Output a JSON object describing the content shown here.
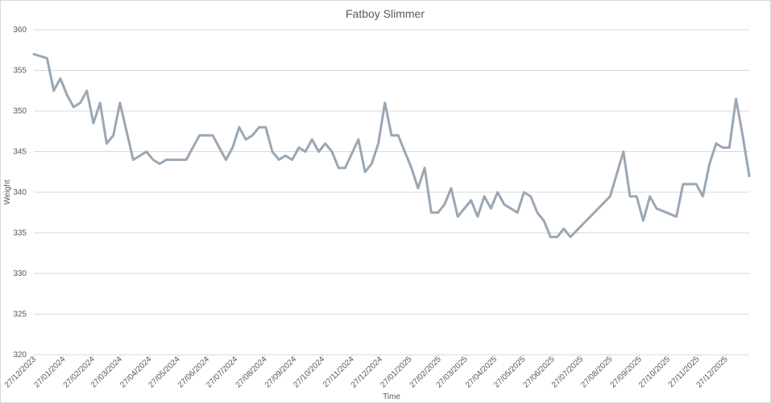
{
  "chart_data": {
    "type": "line",
    "title": "Fatboy Slimmer",
    "x_label": "Time",
    "y_label": "Weight",
    "color": "#9aa7b4",
    "grid": true,
    "x": [
      "2023-12-27",
      "2024-01-10",
      "2024-01-17",
      "2024-01-24",
      "2024-01-31",
      "2024-02-07",
      "2024-02-14",
      "2024-02-21",
      "2024-02-28",
      "2024-03-06",
      "2024-03-13",
      "2024-03-20",
      "2024-03-27",
      "2024-04-10",
      "2024-04-24",
      "2024-05-01",
      "2024-05-08",
      "2024-05-15",
      "2024-06-05",
      "2024-06-19",
      "2024-07-03",
      "2024-07-17",
      "2024-07-24",
      "2024-07-31",
      "2024-08-07",
      "2024-08-14",
      "2024-08-21",
      "2024-08-28",
      "2024-09-04",
      "2024-09-11",
      "2024-09-18",
      "2024-09-25",
      "2024-10-02",
      "2024-10-09",
      "2024-10-16",
      "2024-10-23",
      "2024-10-30",
      "2024-11-06",
      "2024-11-13",
      "2024-11-20",
      "2024-12-04",
      "2024-12-11",
      "2024-12-18",
      "2024-12-25",
      "2025-01-01",
      "2025-01-08",
      "2025-01-15",
      "2025-01-29",
      "2025-02-05",
      "2025-02-12",
      "2025-02-19",
      "2025-02-26",
      "2025-03-05",
      "2025-03-12",
      "2025-03-19",
      "2025-03-26",
      "2025-04-02",
      "2025-04-09",
      "2025-04-16",
      "2025-04-23",
      "2025-04-30",
      "2025-05-07",
      "2025-05-21",
      "2025-05-28",
      "2025-06-04",
      "2025-06-11",
      "2025-06-18",
      "2025-06-25",
      "2025-07-02",
      "2025-07-09",
      "2025-07-16",
      "2025-08-27",
      "2025-09-10",
      "2025-09-17",
      "2025-09-24",
      "2025-10-01",
      "2025-10-08",
      "2025-10-15",
      "2025-11-05",
      "2025-11-12",
      "2025-11-26",
      "2025-12-03",
      "2025-12-10",
      "2025-12-17",
      "2025-12-24",
      "2025-12-31",
      "2026-01-07",
      "2026-01-14",
      "2026-01-21"
    ],
    "values": [
      357,
      356.5,
      352.5,
      354,
      352,
      350.5,
      351,
      352.5,
      348.5,
      351,
      346,
      347,
      351,
      344,
      345,
      344,
      343.5,
      344,
      344,
      347,
      347,
      344,
      345.5,
      348,
      346.5,
      347,
      348,
      348,
      345,
      344,
      344.5,
      344,
      345.5,
      345,
      346.5,
      345,
      346,
      345,
      343,
      343,
      346.5,
      342.5,
      343.5,
      346,
      351,
      347,
      347,
      343,
      340.5,
      343,
      337.5,
      337.5,
      338.5,
      340.5,
      337,
      338,
      339,
      337,
      339.5,
      338,
      340,
      338.5,
      337.5,
      340,
      339.5,
      337.5,
      336.5,
      334.5,
      334.5,
      335.5,
      334.5,
      339.5,
      345,
      339.5,
      339.5,
      336.5,
      339.5,
      338,
      337,
      341,
      341,
      339.5,
      343.5,
      346,
      345.5,
      345.5,
      351.5,
      347,
      342
    ],
    "xlim": [
      "2023-12-27",
      "2026-01-21"
    ],
    "xticks": [
      {
        "value": "2023-12-27",
        "label": "27/12/2023"
      },
      {
        "value": "2024-01-27",
        "label": "27/01/2024"
      },
      {
        "value": "2024-02-27",
        "label": "27/02/2024"
      },
      {
        "value": "2024-03-27",
        "label": "27/03/2024"
      },
      {
        "value": "2024-04-27",
        "label": "27/04/2024"
      },
      {
        "value": "2024-05-27",
        "label": "27/05/2024"
      },
      {
        "value": "2024-06-27",
        "label": "27/06/2024"
      },
      {
        "value": "2024-07-27",
        "label": "27/07/2024"
      },
      {
        "value": "2024-08-27",
        "label": "27/08/2024"
      },
      {
        "value": "2024-09-27",
        "label": "27/09/2024"
      },
      {
        "value": "2024-10-27",
        "label": "27/10/2024"
      },
      {
        "value": "2024-11-27",
        "label": "27/11/2024"
      },
      {
        "value": "2024-12-27",
        "label": "27/12/2024"
      },
      {
        "value": "2025-01-27",
        "label": "27/01/2025"
      },
      {
        "value": "2025-02-27",
        "label": "27/02/2025"
      },
      {
        "value": "2025-03-27",
        "label": "27/03/2025"
      },
      {
        "value": "2025-04-27",
        "label": "27/04/2025"
      },
      {
        "value": "2025-05-27",
        "label": "27/05/2025"
      },
      {
        "value": "2025-06-27",
        "label": "27/06/2025"
      },
      {
        "value": "2025-07-27",
        "label": "27/07/2025"
      },
      {
        "value": "2025-08-27",
        "label": "27/08/2025"
      },
      {
        "value": "2025-09-27",
        "label": "27/09/2025"
      },
      {
        "value": "2025-10-27",
        "label": "27/10/2025"
      },
      {
        "value": "2025-11-27",
        "label": "27/11/2025"
      },
      {
        "value": "2025-12-27",
        "label": "27/12/2025"
      }
    ],
    "ylim": [
      320,
      360
    ],
    "yticks": [
      320,
      325,
      330,
      335,
      340,
      345,
      350,
      355,
      360
    ]
  }
}
